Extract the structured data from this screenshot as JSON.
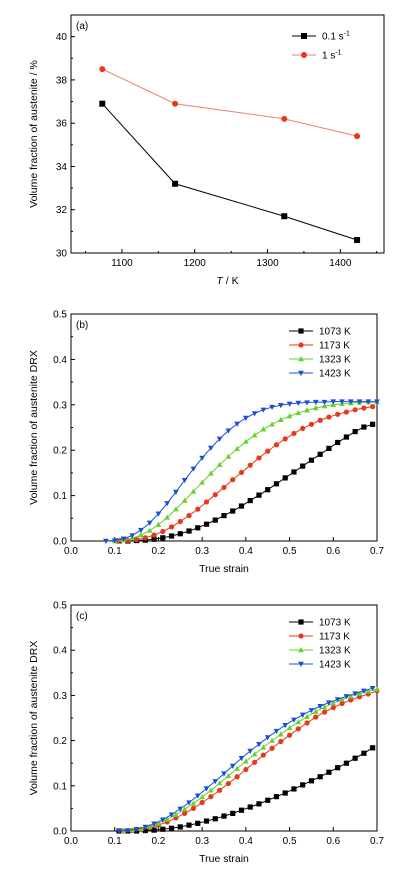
{
  "colors": {
    "black": "#000000",
    "red": "#e8381b",
    "green": "#66d12f",
    "blue": "#1a4fd6",
    "red_line": "#f08070"
  },
  "chart_data": [
    {
      "type": "line",
      "panel_label": "(a)",
      "xlabel_italic": "T",
      "xlabel_unit": " / K",
      "ylabel": "Volume fraction of austenite / %",
      "xlim": [
        1030,
        1460
      ],
      "ylim": [
        30,
        41
      ],
      "xticks": [
        1100,
        1200,
        1300,
        1400
      ],
      "yticks": [
        30,
        32,
        34,
        36,
        38,
        40
      ],
      "legend_position": "top-right",
      "series": [
        {
          "name": "0.1 s",
          "name_sup": "-1",
          "marker": "square",
          "color": "#000000",
          "x": [
            1073,
            1173,
            1323,
            1423
          ],
          "y": [
            36.9,
            33.2,
            31.7,
            30.6
          ]
        },
        {
          "name": "1 s",
          "name_sup": "-1",
          "marker": "circle",
          "color": "#e8381b",
          "x": [
            1073,
            1173,
            1323,
            1423
          ],
          "y": [
            38.5,
            36.9,
            36.2,
            35.4
          ]
        }
      ]
    },
    {
      "type": "line",
      "panel_label": "(b)",
      "xlabel": "True strain",
      "ylabel": "Volume fraction of austenite DRX",
      "xlim": [
        0.0,
        0.7
      ],
      "ylim": [
        0.0,
        0.5
      ],
      "xticks": [
        "0.0",
        "0.1",
        "0.2",
        "0.3",
        "0.4",
        "0.5",
        "0.6",
        "0.7"
      ],
      "yticks": [
        "0.0",
        "0.1",
        "0.2",
        "0.3",
        "0.4",
        "0.5"
      ],
      "legend_position": "top-right",
      "series": [
        {
          "name": "1073 K",
          "marker": "square",
          "color": "#000000",
          "x": [
            0.11,
            0.13,
            0.15,
            0.17,
            0.19,
            0.21,
            0.23,
            0.25,
            0.27,
            0.29,
            0.31,
            0.33,
            0.35,
            0.37,
            0.39,
            0.41,
            0.43,
            0.45,
            0.47,
            0.49,
            0.51,
            0.53,
            0.55,
            0.57,
            0.59,
            0.61,
            0.63,
            0.65,
            0.67,
            0.69
          ],
          "y": [
            0.0,
            0.0,
            0.001,
            0.002,
            0.004,
            0.007,
            0.011,
            0.016,
            0.022,
            0.029,
            0.037,
            0.046,
            0.056,
            0.066,
            0.077,
            0.089,
            0.101,
            0.113,
            0.126,
            0.139,
            0.152,
            0.165,
            0.178,
            0.191,
            0.204,
            0.217,
            0.229,
            0.241,
            0.251,
            0.257
          ]
        },
        {
          "name": "1173 K",
          "marker": "circle",
          "color": "#e8381b",
          "x": [
            0.11,
            0.13,
            0.15,
            0.17,
            0.19,
            0.21,
            0.23,
            0.25,
            0.27,
            0.29,
            0.31,
            0.33,
            0.35,
            0.37,
            0.39,
            0.41,
            0.43,
            0.45,
            0.47,
            0.49,
            0.51,
            0.53,
            0.55,
            0.57,
            0.59,
            0.61,
            0.63,
            0.65,
            0.67,
            0.69
          ],
          "y": [
            0.0,
            0.001,
            0.003,
            0.007,
            0.013,
            0.021,
            0.031,
            0.043,
            0.056,
            0.07,
            0.086,
            0.102,
            0.118,
            0.135,
            0.151,
            0.167,
            0.183,
            0.198,
            0.212,
            0.225,
            0.237,
            0.248,
            0.257,
            0.266,
            0.273,
            0.279,
            0.284,
            0.289,
            0.293,
            0.296
          ]
        },
        {
          "name": "1323 K",
          "marker": "triangle-up",
          "color": "#66d12f",
          "x": [
            0.1,
            0.12,
            0.14,
            0.16,
            0.18,
            0.2,
            0.22,
            0.24,
            0.26,
            0.28,
            0.3,
            0.32,
            0.34,
            0.36,
            0.38,
            0.4,
            0.42,
            0.44,
            0.46,
            0.48,
            0.5,
            0.52,
            0.54,
            0.56,
            0.58,
            0.6,
            0.62,
            0.64,
            0.66,
            0.68,
            0.7
          ],
          "y": [
            0.0,
            0.002,
            0.006,
            0.013,
            0.023,
            0.036,
            0.052,
            0.07,
            0.089,
            0.109,
            0.129,
            0.149,
            0.168,
            0.186,
            0.203,
            0.219,
            0.233,
            0.246,
            0.257,
            0.267,
            0.275,
            0.282,
            0.288,
            0.293,
            0.297,
            0.3,
            0.302,
            0.304,
            0.305,
            0.306,
            0.306
          ]
        },
        {
          "name": "1423 K",
          "marker": "triangle-down",
          "color": "#1a4fd6",
          "x": [
            0.08,
            0.1,
            0.12,
            0.14,
            0.16,
            0.18,
            0.2,
            0.22,
            0.24,
            0.26,
            0.28,
            0.3,
            0.32,
            0.34,
            0.36,
            0.38,
            0.4,
            0.42,
            0.44,
            0.46,
            0.48,
            0.5,
            0.52,
            0.54,
            0.56,
            0.58,
            0.6,
            0.62,
            0.64,
            0.66,
            0.68,
            0.7
          ],
          "y": [
            0.0,
            0.001,
            0.005,
            0.012,
            0.024,
            0.04,
            0.06,
            0.083,
            0.108,
            0.134,
            0.159,
            0.183,
            0.205,
            0.225,
            0.243,
            0.258,
            0.271,
            0.281,
            0.289,
            0.295,
            0.299,
            0.302,
            0.304,
            0.305,
            0.306,
            0.306,
            0.307,
            0.307,
            0.307,
            0.307,
            0.307,
            0.307
          ]
        }
      ]
    },
    {
      "type": "line",
      "panel_label": "(c)",
      "xlabel": "True strain",
      "ylabel": "Volume fraction of austenite DRX",
      "xlim": [
        0.0,
        0.7
      ],
      "ylim": [
        0.0,
        0.5
      ],
      "xticks": [
        "0.0",
        "0.1",
        "0.2",
        "0.3",
        "0.4",
        "0.5",
        "0.6",
        "0.7"
      ],
      "yticks": [
        "0.0",
        "0.1",
        "0.2",
        "0.3",
        "0.4",
        "0.5"
      ],
      "legend_position": "top-right",
      "series": [
        {
          "name": "1073 K",
          "marker": "square",
          "color": "#000000",
          "x": [
            0.11,
            0.13,
            0.15,
            0.17,
            0.19,
            0.21,
            0.23,
            0.25,
            0.27,
            0.29,
            0.31,
            0.33,
            0.35,
            0.37,
            0.39,
            0.41,
            0.43,
            0.45,
            0.47,
            0.49,
            0.51,
            0.53,
            0.55,
            0.57,
            0.59,
            0.61,
            0.63,
            0.65,
            0.67,
            0.69
          ],
          "y": [
            0.0,
            0.0,
            0.0,
            0.001,
            0.002,
            0.004,
            0.006,
            0.009,
            0.013,
            0.017,
            0.022,
            0.027,
            0.033,
            0.039,
            0.046,
            0.053,
            0.06,
            0.068,
            0.076,
            0.084,
            0.093,
            0.102,
            0.111,
            0.12,
            0.13,
            0.14,
            0.15,
            0.161,
            0.172,
            0.184
          ]
        },
        {
          "name": "1173 K",
          "marker": "circle",
          "color": "#e8381b",
          "x": [
            0.12,
            0.14,
            0.16,
            0.18,
            0.2,
            0.22,
            0.24,
            0.26,
            0.28,
            0.3,
            0.32,
            0.34,
            0.36,
            0.38,
            0.4,
            0.42,
            0.44,
            0.46,
            0.48,
            0.5,
            0.52,
            0.54,
            0.56,
            0.58,
            0.6,
            0.62,
            0.64,
            0.66,
            0.68,
            0.7
          ],
          "y": [
            0.0,
            0.001,
            0.003,
            0.007,
            0.013,
            0.02,
            0.029,
            0.039,
            0.05,
            0.063,
            0.076,
            0.09,
            0.105,
            0.12,
            0.136,
            0.152,
            0.168,
            0.183,
            0.198,
            0.212,
            0.226,
            0.239,
            0.252,
            0.263,
            0.273,
            0.282,
            0.29,
            0.297,
            0.303,
            0.31
          ]
        },
        {
          "name": "1323 K",
          "marker": "triangle-up",
          "color": "#66d12f",
          "x": [
            0.12,
            0.14,
            0.16,
            0.18,
            0.2,
            0.22,
            0.24,
            0.26,
            0.28,
            0.3,
            0.32,
            0.34,
            0.36,
            0.38,
            0.4,
            0.42,
            0.44,
            0.46,
            0.48,
            0.5,
            0.52,
            0.54,
            0.56,
            0.58,
            0.6,
            0.62,
            0.64,
            0.66,
            0.68,
            0.7
          ],
          "y": [
            0.0,
            0.002,
            0.005,
            0.01,
            0.017,
            0.026,
            0.036,
            0.048,
            0.061,
            0.075,
            0.09,
            0.106,
            0.122,
            0.138,
            0.154,
            0.17,
            0.185,
            0.2,
            0.214,
            0.228,
            0.241,
            0.253,
            0.264,
            0.274,
            0.283,
            0.291,
            0.298,
            0.304,
            0.309,
            0.313
          ]
        },
        {
          "name": "1423 K",
          "marker": "triangle-down",
          "color": "#1a4fd6",
          "x": [
            0.11,
            0.13,
            0.15,
            0.17,
            0.19,
            0.21,
            0.23,
            0.25,
            0.27,
            0.29,
            0.31,
            0.33,
            0.35,
            0.37,
            0.39,
            0.41,
            0.43,
            0.45,
            0.47,
            0.49,
            0.51,
            0.53,
            0.55,
            0.57,
            0.59,
            0.61,
            0.63,
            0.65,
            0.67,
            0.69
          ],
          "y": [
            0.0,
            0.001,
            0.004,
            0.009,
            0.016,
            0.025,
            0.036,
            0.049,
            0.063,
            0.078,
            0.094,
            0.11,
            0.127,
            0.144,
            0.161,
            0.177,
            0.192,
            0.207,
            0.221,
            0.234,
            0.246,
            0.257,
            0.267,
            0.276,
            0.284,
            0.291,
            0.298,
            0.304,
            0.31,
            0.316
          ]
        }
      ]
    }
  ]
}
